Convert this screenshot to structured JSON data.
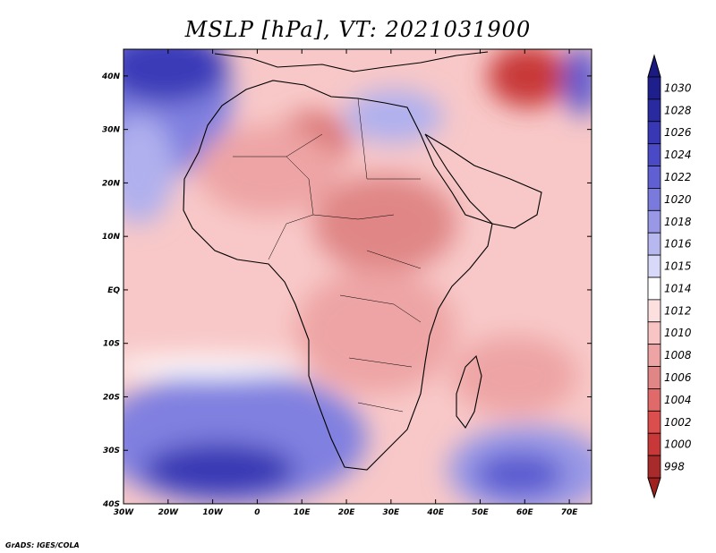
{
  "title": "MSLP [hPa], VT: 2021031900",
  "credit": "GrADS: IGES/COLA",
  "map": {
    "lon_range": [
      -30,
      75
    ],
    "lat_range": [
      -40,
      45
    ],
    "lon_ticks": [
      {
        "value": -30,
        "label": "30W"
      },
      {
        "value": -20,
        "label": "20W"
      },
      {
        "value": -10,
        "label": "10W"
      },
      {
        "value": 0,
        "label": "0"
      },
      {
        "value": 10,
        "label": "10E"
      },
      {
        "value": 20,
        "label": "20E"
      },
      {
        "value": 30,
        "label": "30E"
      },
      {
        "value": 40,
        "label": "40E"
      },
      {
        "value": 50,
        "label": "50E"
      },
      {
        "value": 60,
        "label": "60E"
      },
      {
        "value": 70,
        "label": "70E"
      }
    ],
    "lat_ticks": [
      {
        "value": 40,
        "label": "40N"
      },
      {
        "value": 30,
        "label": "30N"
      },
      {
        "value": 20,
        "label": "20N"
      },
      {
        "value": 10,
        "label": "10N"
      },
      {
        "value": 0,
        "label": "EQ"
      },
      {
        "value": -10,
        "label": "10S"
      },
      {
        "value": -20,
        "label": "20S"
      },
      {
        "value": -30,
        "label": "30S"
      },
      {
        "value": -40,
        "label": "40S"
      }
    ],
    "pressure_systems": [
      {
        "name": "low-sahara",
        "lon": 13,
        "lat": 27,
        "value": 1005
      },
      {
        "name": "low-sudan",
        "lon": 27,
        "lat": 10,
        "value": 1006
      },
      {
        "name": "low-chad",
        "lon": 18,
        "lat": 14,
        "value": 1007
      },
      {
        "name": "low-iran",
        "lon": 61,
        "lat": 40,
        "value": 1003
      },
      {
        "name": "low-mozambique-channel",
        "lon": 42,
        "lat": -19,
        "value": 1009
      },
      {
        "name": "high-south-atlantic",
        "lon": -10,
        "lat": -33,
        "value": 1026
      },
      {
        "name": "high-south-indian",
        "lon": 62,
        "lat": -33,
        "value": 1022
      },
      {
        "name": "high-north-atlantic",
        "lon": -22,
        "lat": 44,
        "value": 1027
      },
      {
        "name": "high-mediterranean",
        "lon": 25,
        "lat": 33,
        "value": 1018
      },
      {
        "name": "high-caspian",
        "lon": 71,
        "lat": 41,
        "value": 1022
      }
    ]
  },
  "colorbar": {
    "levels": [
      {
        "label": "1030",
        "color": "#1e1e8c"
      },
      {
        "label": "1028",
        "color": "#2a2aa0"
      },
      {
        "label": "1026",
        "color": "#3838b4"
      },
      {
        "label": "1024",
        "color": "#4a4ac6"
      },
      {
        "label": "1022",
        "color": "#6060d2"
      },
      {
        "label": "1020",
        "color": "#7a7add"
      },
      {
        "label": "1018",
        "color": "#9898e6"
      },
      {
        "label": "1016",
        "color": "#b8b8f0"
      },
      {
        "label": "1015",
        "color": "#d8d8f8"
      },
      {
        "label": "1014",
        "color": "#ffffff"
      },
      {
        "label": "1012",
        "color": "#fce0e0"
      },
      {
        "label": "1010",
        "color": "#f8c4c4"
      },
      {
        "label": "1008",
        "color": "#eea4a4"
      },
      {
        "label": "1006",
        "color": "#e08686"
      },
      {
        "label": "1004",
        "color": "#e06a6a"
      },
      {
        "label": "1002",
        "color": "#dc4e4e"
      },
      {
        "label": "1000",
        "color": "#c83838"
      },
      {
        "label": "998",
        "color": "#a82a2a"
      }
    ],
    "top_arrow_color": "#1a1a80",
    "bottom_arrow_color": "#a02020"
  }
}
